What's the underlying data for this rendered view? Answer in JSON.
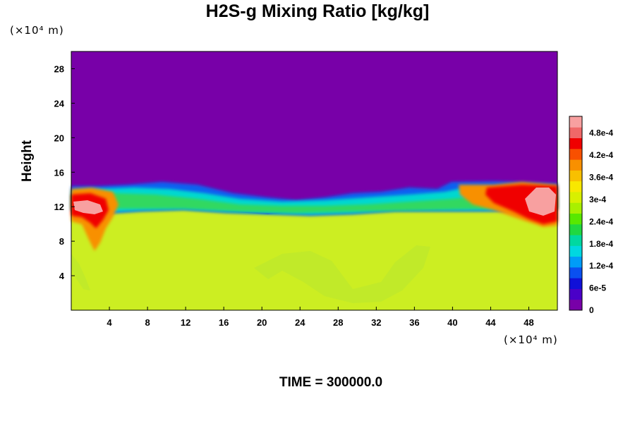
{
  "chart_data": {
    "type": "heatmap",
    "title": "H2S-g Mixing Ratio [kg/kg]",
    "ylabel": "Height",
    "xlabel": "",
    "x_unit": "(×10⁴ m)",
    "y_unit": "(×10⁴ m)",
    "x_ticks": [
      "4",
      "8",
      "12",
      "16",
      "20",
      "24",
      "28",
      "32",
      "36",
      "40",
      "44",
      "48"
    ],
    "y_ticks": [
      "4",
      "8",
      "12",
      "16",
      "20",
      "24",
      "28"
    ],
    "xlim": [
      0,
      51
    ],
    "ylim": [
      0,
      30
    ],
    "colorbar": {
      "min": 0,
      "max": 0.00051,
      "labels": [
        "0",
        "6e-5",
        "1.2e-4",
        "1.8e-4",
        "2.4e-4",
        "3e-4",
        "3.6e-4",
        "4.2e-4",
        "4.8e-4"
      ],
      "colors": [
        "#7800a8",
        "#4a00c8",
        "#1010d8",
        "#0a50f0",
        "#009cf8",
        "#00d8e0",
        "#00d8a0",
        "#20d840",
        "#58e800",
        "#a8f000",
        "#d8f000",
        "#f8e800",
        "#f8c000",
        "#f89000",
        "#f85000",
        "#f00000",
        "#f06868",
        "#f8a0a0"
      ]
    },
    "field_summary": {
      "top_region_value": 0,
      "lower_region_value": 0.00034,
      "interface_height_range": [
        11,
        15
      ],
      "max_value_near": "x≈2 and x≈49, height≈12"
    },
    "annotation": "TIME = 300000.0"
  }
}
